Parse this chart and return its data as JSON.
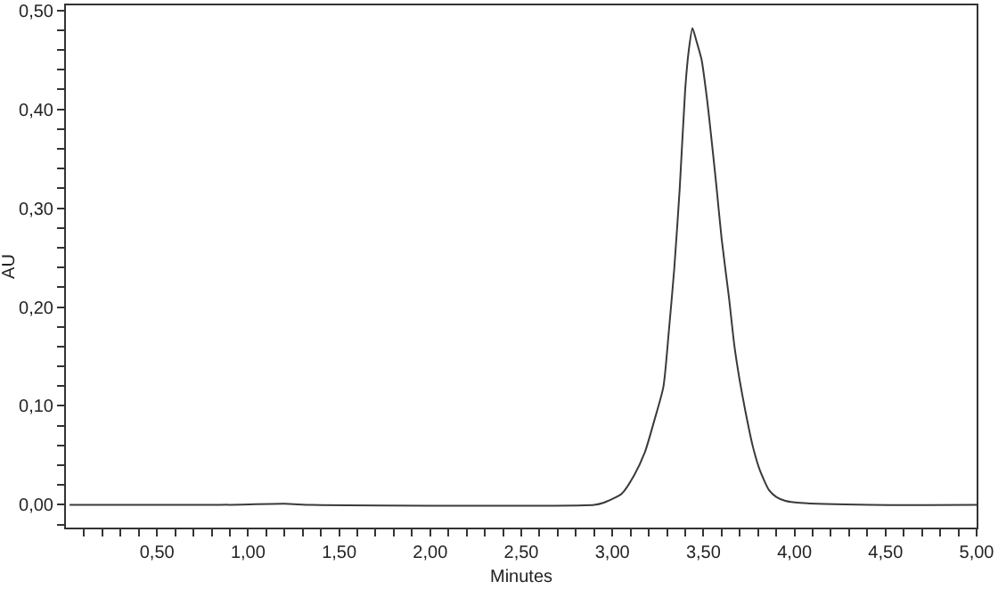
{
  "chart_data": {
    "type": "line",
    "xlabel": "Minutes",
    "ylabel": "AU",
    "series": [
      {
        "color": "#3a3a3a",
        "x": [
          0.02,
          0.85,
          1.2,
          1.35,
          2.9,
          2.95,
          3.05,
          3.12,
          3.18,
          3.23,
          3.28,
          3.31,
          3.34,
          3.37,
          3.4,
          3.42,
          3.44,
          3.46,
          3.49,
          3.52,
          3.54,
          3.57,
          3.6,
          3.64,
          3.67,
          3.7,
          3.73,
          3.77,
          3.81,
          3.86,
          3.9,
          3.95,
          4.03,
          4.42,
          5.0
        ],
        "values": [
          0,
          0,
          0.001,
          0,
          0,
          0.002,
          0.011,
          0.03,
          0.054,
          0.085,
          0.119,
          0.175,
          0.239,
          0.32,
          0.42,
          0.46,
          0.482,
          0.47,
          0.45,
          0.41,
          0.377,
          0.325,
          0.269,
          0.21,
          0.161,
          0.125,
          0.095,
          0.06,
          0.035,
          0.015,
          0.008,
          0.004,
          0.002,
          0,
          0
        ]
      }
    ],
    "xlim": [
      0,
      5
    ],
    "ylim": [
      -0.023,
      0.505
    ],
    "xticks": [
      {
        "value": 0.1,
        "label": null
      },
      {
        "value": 0.2,
        "label": null
      },
      {
        "value": 0.3,
        "label": null
      },
      {
        "value": 0.4,
        "label": null
      },
      {
        "value": 0.5,
        "label": "0,50"
      },
      {
        "value": 0.6,
        "label": null
      },
      {
        "value": 0.7,
        "label": null
      },
      {
        "value": 0.8,
        "label": null
      },
      {
        "value": 0.9,
        "label": null
      },
      {
        "value": 1,
        "label": "1,00"
      },
      {
        "value": 1.1,
        "label": null
      },
      {
        "value": 1.2,
        "label": null
      },
      {
        "value": 1.3,
        "label": null
      },
      {
        "value": 1.4,
        "label": null
      },
      {
        "value": 1.5,
        "label": "1,50"
      },
      {
        "value": 1.6,
        "label": null
      },
      {
        "value": 1.7,
        "label": null
      },
      {
        "value": 1.8,
        "label": null
      },
      {
        "value": 1.9,
        "label": null
      },
      {
        "value": 2,
        "label": "2,00"
      },
      {
        "value": 2.1,
        "label": null
      },
      {
        "value": 2.2,
        "label": null
      },
      {
        "value": 2.3,
        "label": null
      },
      {
        "value": 2.4,
        "label": null
      },
      {
        "value": 2.5,
        "label": "2,50"
      },
      {
        "value": 2.6,
        "label": null
      },
      {
        "value": 2.7,
        "label": null
      },
      {
        "value": 2.8,
        "label": null
      },
      {
        "value": 2.9,
        "label": null
      },
      {
        "value": 3,
        "label": "3,00"
      },
      {
        "value": 3.1,
        "label": null
      },
      {
        "value": 3.2,
        "label": null
      },
      {
        "value": 3.3,
        "label": null
      },
      {
        "value": 3.4,
        "label": null
      },
      {
        "value": 3.5,
        "label": "3,50"
      },
      {
        "value": 3.6,
        "label": null
      },
      {
        "value": 3.7,
        "label": null
      },
      {
        "value": 3.8,
        "label": null
      },
      {
        "value": 3.9,
        "label": null
      },
      {
        "value": 4,
        "label": "4,00"
      },
      {
        "value": 4.1,
        "label": null
      },
      {
        "value": 4.2,
        "label": null
      },
      {
        "value": 4.3,
        "label": null
      },
      {
        "value": 4.4,
        "label": null
      },
      {
        "value": 4.5,
        "label": "4,50"
      },
      {
        "value": 4.6,
        "label": null
      },
      {
        "value": 4.7,
        "label": null
      },
      {
        "value": 4.8,
        "label": null
      },
      {
        "value": 4.9,
        "label": null
      },
      {
        "value": 5,
        "label": "5,00"
      }
    ],
    "yticks": [
      {
        "value": -0.02,
        "label": null
      },
      {
        "value": 0,
        "label": "0,00"
      },
      {
        "value": 0.02,
        "label": null
      },
      {
        "value": 0.04,
        "label": null
      },
      {
        "value": 0.06,
        "label": null
      },
      {
        "value": 0.08,
        "label": null
      },
      {
        "value": 0.1,
        "label": "0,10"
      },
      {
        "value": 0.12,
        "label": null
      },
      {
        "value": 0.14,
        "label": null
      },
      {
        "value": 0.16,
        "label": null
      },
      {
        "value": 0.18,
        "label": null
      },
      {
        "value": 0.2,
        "label": "0,20"
      },
      {
        "value": 0.22,
        "label": null
      },
      {
        "value": 0.24,
        "label": null
      },
      {
        "value": 0.26,
        "label": null
      },
      {
        "value": 0.28,
        "label": null
      },
      {
        "value": 0.3,
        "label": "0,30"
      },
      {
        "value": 0.32,
        "label": null
      },
      {
        "value": 0.34,
        "label": null
      },
      {
        "value": 0.36,
        "label": null
      },
      {
        "value": 0.38,
        "label": null
      },
      {
        "value": 0.4,
        "label": "0,40"
      },
      {
        "value": 0.42,
        "label": null
      },
      {
        "value": 0.44,
        "label": null
      },
      {
        "value": 0.46,
        "label": null
      },
      {
        "value": 0.48,
        "label": null
      },
      {
        "value": 0.5,
        "label": "0,50"
      }
    ],
    "marker": "none",
    "line_style": "solid"
  }
}
